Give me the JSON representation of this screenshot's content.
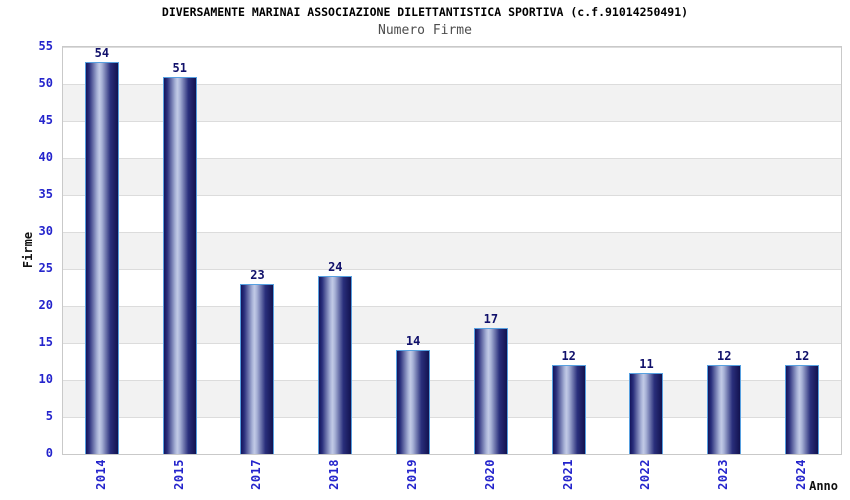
{
  "chart_data": {
    "type": "bar",
    "title": "DIVERSAMENTE MARINAI ASSOCIAZIONE DILETTANTISTICA SPORTIVA (c.f.91014250491)",
    "subtitle": "Numero Firme",
    "xlabel": "Anno",
    "ylabel": "Firme",
    "categories": [
      "2014",
      "2015",
      "2017",
      "2018",
      "2019",
      "2020",
      "2021",
      "2022",
      "2023",
      "2024"
    ],
    "values": [
      54,
      51,
      23,
      24,
      14,
      17,
      12,
      11,
      12,
      12
    ],
    "ylim": [
      0,
      55
    ],
    "ytick_step": 5,
    "yticks": [
      0,
      5,
      10,
      15,
      20,
      25,
      30,
      35,
      40,
      45,
      50,
      55
    ],
    "grid": "horizontal-alternating-bands",
    "legend": "none",
    "colors": {
      "bar_edge_dark": "#14145c",
      "bar_mid": "#2a2f7c",
      "bar_highlight": "#c2cae6",
      "bar_border": "#57a0e0",
      "axis_tick_label": "#2424cc",
      "value_label": "#11116b",
      "band_gray": "#f2f2f2",
      "gridline": "#dcdcdc",
      "plot_border": "#c9c9c9",
      "title_color": "#000000",
      "subtitle_color": "#4d4d4d"
    }
  }
}
